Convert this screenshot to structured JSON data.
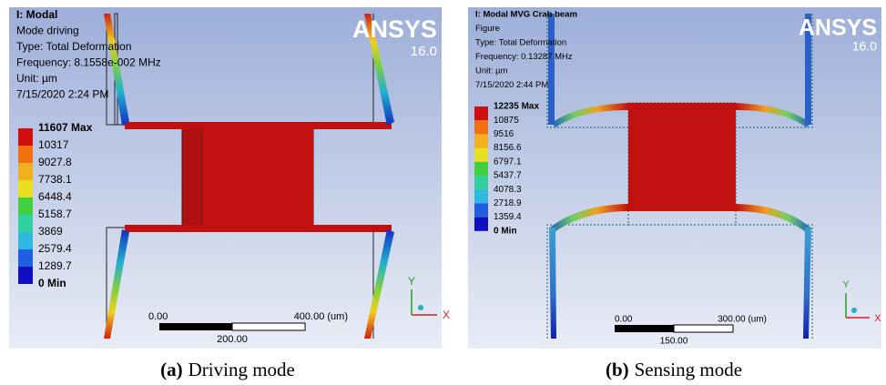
{
  "panels": [
    {
      "header": [
        "I: Modal",
        "Mode driving",
        "Type: Total Deformation",
        "Frequency: 8.1558e-002 MHz",
        "Unit: µm",
        "7/15/2020 2:24 PM"
      ],
      "brand": "ANSYS",
      "version": "16.0",
      "legend": [
        "11607 Max",
        "10317",
        "9027.8",
        "7738.1",
        "6448.4",
        "5158.7",
        "3869",
        "2579.4",
        "1289.7",
        "0 Min"
      ],
      "scale": [
        "0.00",
        "400.00 (um)",
        "200.00"
      ],
      "axes": [
        "Y",
        "X"
      ],
      "caption": {
        "label": "(a)",
        "text": "Driving mode"
      }
    },
    {
      "header": [
        "I: Modal MVG Crab beam",
        "Figure",
        "Type: Total Deformation",
        "Frequency: 0.13287 MHz",
        "Unit: µm",
        "7/15/2020 2:44 PM"
      ],
      "brand": "ANSYS",
      "version": "16.0",
      "legend": [
        "12235 Max",
        "10875",
        "9516",
        "8156.6",
        "6797.1",
        "5437.7",
        "4078.3",
        "2718.9",
        "1359.4",
        "0 Min"
      ],
      "scale": [
        "0.00",
        "300.00 (um)",
        "150.00"
      ],
      "axes": [
        "Y",
        "X"
      ],
      "caption": {
        "label": "(b)",
        "text": "Sensing mode"
      }
    }
  ]
}
